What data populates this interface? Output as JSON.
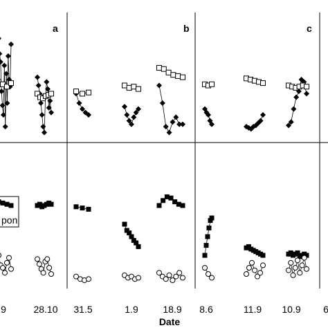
{
  "chart_data": {
    "type": "scatter",
    "xlabel": "Date",
    "legend_fragment": "pon",
    "panel_labels": [
      "a",
      "b",
      "c"
    ],
    "x_ticks": [
      "9",
      "28.10",
      "31.5",
      "1.9",
      "18.9",
      "8.6",
      "11.9",
      "10.9",
      "6"
    ],
    "panels": [
      {
        "label": "a",
        "top_diamonds": [
          {
            "cluster": 1,
            "y": [
              0.85,
              0.72,
              0.65,
              0.4,
              0.28,
              0.2,
              0.62,
              0.1,
              0.55,
              0.3,
              0.7,
              0.5,
              0.44,
              0.8
            ]
          },
          {
            "cluster": 2,
            "y": [
              0.52,
              0.45,
              0.38,
              0.3,
              0.2,
              0.1,
              0.05,
              0.35,
              0.48,
              0.42,
              0.26,
              0.32,
              0.22
            ]
          }
        ],
        "top_squares": [
          {
            "cluster": 1,
            "y": [
              0.48,
              0.46,
              0.44,
              0.47
            ]
          },
          {
            "cluster": 2,
            "y": [
              0.38,
              0.35,
              0.34,
              0.36,
              0.37,
              0.38
            ]
          }
        ],
        "bottom_squares": [
          {
            "cluster": 1,
            "y": [
              0.63,
              0.62,
              0.61,
              0.6
            ]
          },
          {
            "cluster": 2,
            "y": [
              0.6,
              0.61,
              0.59,
              0.6,
              0.61,
              0.62,
              0.61
            ]
          }
        ],
        "bottom_circles": [
          {
            "cluster": 1,
            "y": [
              0.2,
              0.12,
              0.1,
              0.06,
              0.14,
              0.18,
              0.09
            ]
          },
          {
            "cluster": 2,
            "y": [
              0.17,
              0.13,
              0.09,
              0.06,
              0.15,
              0.17,
              0.1,
              0.05
            ]
          }
        ]
      },
      {
        "label": "b",
        "top_diamonds": [
          {
            "cluster": 1,
            "y": [
              0.38,
              0.3,
              0.25,
              0.22,
              0.2
            ]
          },
          {
            "cluster": 2,
            "y": [
              0.27,
              0.2,
              0.15,
              0.12,
              0.18,
              0.22,
              0.25
            ]
          },
          {
            "cluster": 3,
            "y": [
              0.45,
              0.3,
              0.1,
              0.05,
              0.14,
              0.18,
              0.12,
              0.12
            ]
          }
        ],
        "top_squares": [
          {
            "cluster": 1,
            "y": [
              0.4,
              0.38,
              0.39
            ]
          },
          {
            "cluster": 2,
            "y": [
              0.45,
              0.43,
              0.44,
              0.42
            ]
          },
          {
            "cluster": 3,
            "y": [
              0.6,
              0.59,
              0.56,
              0.54,
              0.53,
              0.52
            ]
          }
        ],
        "bottom_squares": [
          {
            "cluster": 1,
            "y": [
              0.59,
              0.58,
              0.57
            ]
          },
          {
            "cluster": 2,
            "y": [
              0.45,
              0.4,
              0.38,
              0.35,
              0.32,
              0.3,
              0.27
            ]
          },
          {
            "cluster": 3,
            "y": [
              0.6,
              0.64,
              0.67,
              0.66,
              0.63,
              0.61,
              0.6
            ]
          }
        ],
        "bottom_circles": [
          {
            "cluster": 1,
            "y": [
              0.03,
              0.01,
              0.0,
              0.01
            ]
          },
          {
            "cluster": 2,
            "y": [
              0.04,
              0.02,
              0.03,
              0.01,
              0.02
            ]
          },
          {
            "cluster": 3,
            "y": [
              0.06,
              0.03,
              0.01,
              0.04,
              0.0,
              0.03,
              0.06,
              0.02
            ]
          }
        ]
      },
      {
        "label": "c",
        "top_diamonds": [
          {
            "cluster": 1,
            "y": [
              0.25,
              0.22,
              0.2,
              0.15,
              0.12
            ]
          },
          {
            "cluster": 2,
            "y": [
              0.1,
              0.09,
              0.08,
              0.1,
              0.11,
              0.13,
              0.15,
              0.2
            ]
          },
          {
            "cluster": 3,
            "y": [
              0.11,
              0.14,
              0.25,
              0.35,
              0.4,
              0.5,
              0.48,
              0.38
            ]
          }
        ],
        "top_squares": [
          {
            "cluster": 1,
            "y": [
              0.46,
              0.45,
              0.46
            ]
          },
          {
            "cluster": 2,
            "y": [
              0.51,
              0.5,
              0.49,
              0.48,
              0.47
            ]
          },
          {
            "cluster": 3,
            "y": [
              0.45,
              0.44,
              0.43,
              0.44,
              0.45,
              0.44
            ]
          }
        ],
        "bottom_squares": [
          {
            "cluster": 1,
            "y": [
              0.2,
              0.28,
              0.35,
              0.42,
              0.48,
              0.5
            ]
          },
          {
            "cluster": 2,
            "y": [
              0.26,
              0.27,
              0.25,
              0.24,
              0.23,
              0.22,
              0.21,
              0.2
            ]
          },
          {
            "cluster": 3,
            "y": [
              0.21,
              0.22,
              0.2,
              0.21,
              0.22,
              0.19,
              0.2,
              0.21,
              0.2
            ]
          }
        ],
        "bottom_circles": [
          {
            "cluster": 1,
            "y": [
              0.1,
              0.05,
              0.02
            ]
          },
          {
            "cluster": 2,
            "y": [
              0.05,
              0.1,
              0.14,
              0.08,
              0.03,
              0.06,
              0.12
            ]
          },
          {
            "cluster": 3,
            "y": [
              0.08,
              0.14,
              0.04,
              0.1,
              0.16,
              0.06,
              0.12,
              0.18,
              0.09
            ]
          }
        ]
      }
    ]
  }
}
